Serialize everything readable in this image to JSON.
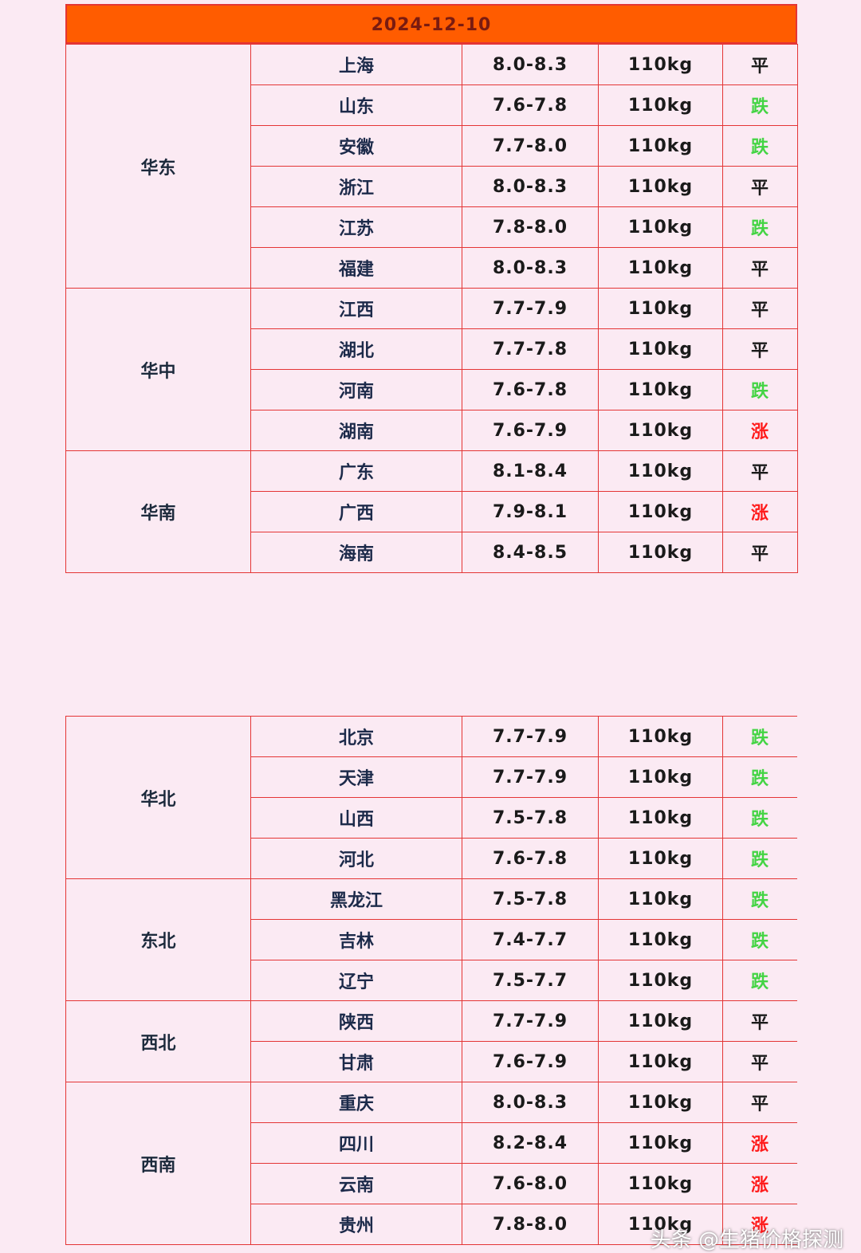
{
  "header": {
    "date": "2024-12-10"
  },
  "trend_colors": {
    "平": "#1a1a1a",
    "跌": "#44d444",
    "涨": "#ff1a1a"
  },
  "tables": [
    {
      "groups": [
        {
          "region": "华东",
          "rows": [
            [
              "上海",
              "8.0-8.3",
              "110kg",
              "平"
            ],
            [
              "山东",
              "7.6-7.8",
              "110kg",
              "跌"
            ],
            [
              "安徽",
              "7.7-8.0",
              "110kg",
              "跌"
            ],
            [
              "浙江",
              "8.0-8.3",
              "110kg",
              "平"
            ],
            [
              "江苏",
              "7.8-8.0",
              "110kg",
              "跌"
            ],
            [
              "福建",
              "8.0-8.3",
              "110kg",
              "平"
            ]
          ]
        },
        {
          "region": "华中",
          "rows": [
            [
              "江西",
              "7.7-7.9",
              "110kg",
              "平"
            ],
            [
              "湖北",
              "7.7-7.8",
              "110kg",
              "平"
            ],
            [
              "河南",
              "7.6-7.8",
              "110kg",
              "跌"
            ],
            [
              "湖南",
              "7.6-7.9",
              "110kg",
              "涨"
            ]
          ]
        },
        {
          "region": "华南",
          "rows": [
            [
              "广东",
              "8.1-8.4",
              "110kg",
              "平"
            ],
            [
              "广西",
              "7.9-8.1",
              "110kg",
              "涨"
            ],
            [
              "海南",
              "8.4-8.5",
              "110kg",
              "平"
            ]
          ]
        }
      ]
    },
    {
      "groups": [
        {
          "region": "华北",
          "rows": [
            [
              "北京",
              "7.7-7.9",
              "110kg",
              "跌"
            ],
            [
              "天津",
              "7.7-7.9",
              "110kg",
              "跌"
            ],
            [
              "山西",
              "7.5-7.8",
              "110kg",
              "跌"
            ],
            [
              "河北",
              "7.6-7.8",
              "110kg",
              "跌"
            ]
          ]
        },
        {
          "region": "东北",
          "rows": [
            [
              "黑龙江",
              "7.5-7.8",
              "110kg",
              "跌"
            ],
            [
              "吉林",
              "7.4-7.7",
              "110kg",
              "跌"
            ],
            [
              "辽宁",
              "7.5-7.7",
              "110kg",
              "跌"
            ]
          ]
        },
        {
          "region": "西北",
          "rows": [
            [
              "陕西",
              "7.7-7.9",
              "110kg",
              "平"
            ],
            [
              "甘肃",
              "7.6-7.9",
              "110kg",
              "平"
            ]
          ]
        },
        {
          "region": "西南",
          "rows": [
            [
              "重庆",
              "8.0-8.3",
              "110kg",
              "平"
            ],
            [
              "四川",
              "8.2-8.4",
              "110kg",
              "涨"
            ],
            [
              "云南",
              "7.6-8.0",
              "110kg",
              "涨"
            ],
            [
              "贵州",
              "7.8-8.0",
              "110kg",
              "涨"
            ]
          ]
        }
      ]
    }
  ],
  "watermark": "头条 @生猪价格探测"
}
